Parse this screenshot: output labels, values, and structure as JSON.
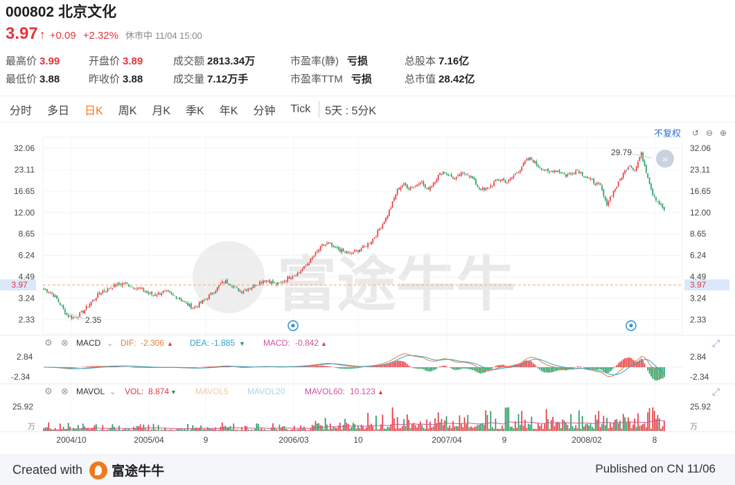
{
  "stock": {
    "code": "000802",
    "name": "北京文化",
    "price": "3.97",
    "change": "+0.09",
    "change_pct": "+2.32%",
    "status": "休市中",
    "datetime": "11/04 15:00"
  },
  "stats": {
    "high_label": "最高价",
    "high": "3.99",
    "open_label": "开盘价",
    "open": "3.89",
    "turnover_label": "成交额",
    "turnover": "2813.34万",
    "pe_static_label": "市盈率(静)",
    "pe_static": "亏损",
    "total_shares_label": "总股本",
    "total_shares": "7.16亿",
    "low_label": "最低价",
    "low": "3.88",
    "prev_close_label": "昨收价",
    "prev_close": "3.88",
    "volume_label": "成交量",
    "volume": "7.12万手",
    "pe_ttm_label": "市盈率TTM",
    "pe_ttm": "亏损",
    "market_cap_label": "总市值",
    "market_cap": "28.42亿"
  },
  "tabs": [
    "分时",
    "多日",
    "日K",
    "周K",
    "月K",
    "季K",
    "年K",
    "分钟",
    "Tick"
  ],
  "active_tab": "日K",
  "five_day_tab": "5天 : 5分K",
  "adjust_label": "不复权",
  "icons": [
    "undo-icon",
    "zoom-out-icon",
    "zoom-in-icon",
    "settings-icon",
    "close-icon",
    "expand-icon",
    "arrow-right-icon"
  ],
  "colors": {
    "up": "#e8333a",
    "down": "#1e9a5a",
    "accent": "#f2781e",
    "link": "#2f6fd6",
    "macd_dif": "#e37c3a",
    "macd_dea": "#2aa3c7",
    "macd": "#d24fa1",
    "mavol60": "#d24fa1"
  },
  "chart_data": {
    "type": "candlestick",
    "log_scale": true,
    "y_ticks": [
      "32.06",
      "23.11",
      "16.65",
      "12.00",
      "8.65",
      "6.24",
      "4.49",
      "3.24",
      "2.33"
    ],
    "ylim": [
      2.0,
      36.0
    ],
    "x_ticks": [
      "2004/10",
      "2005/04",
      "9",
      "2006/03",
      "10",
      "2007/04",
      "9",
      "2008/02",
      "8"
    ],
    "current_price": "3.97",
    "max_label": "29.79",
    "min_label": "2.35",
    "watermark": "富途牛牛",
    "close_series": [
      3.7,
      3.6,
      3.3,
      2.9,
      2.5,
      2.4,
      2.5,
      2.7,
      3.0,
      3.3,
      3.6,
      3.7,
      3.9,
      4.0,
      4.1,
      3.9,
      3.8,
      3.7,
      3.5,
      3.4,
      3.5,
      3.6,
      3.4,
      3.3,
      3.1,
      2.9,
      2.8,
      3.0,
      3.2,
      3.5,
      3.8,
      4.2,
      4.1,
      3.8,
      3.6,
      3.7,
      3.9,
      4.1,
      4.3,
      4.2,
      4.0,
      4.1,
      4.4,
      4.6,
      4.8,
      5.2,
      5.8,
      6.5,
      7.2,
      7.5,
      7.0,
      6.8,
      6.5,
      6.4,
      6.7,
      7.0,
      7.5,
      8.2,
      9.5,
      11.0,
      13.5,
      17.0,
      18.5,
      17.5,
      18.0,
      19.5,
      17.0,
      18.5,
      21.0,
      22.5,
      21.0,
      20.0,
      21.5,
      22.0,
      20.0,
      17.5,
      16.8,
      18.0,
      19.5,
      20.0,
      19.0,
      21.0,
      23.0,
      26.0,
      27.5,
      25.0,
      23.5,
      22.0,
      23.0,
      22.5,
      21.0,
      22.0,
      23.0,
      21.5,
      20.0,
      19.0,
      18.0,
      13.5,
      16.0,
      18.5,
      22.0,
      25.0,
      23.0,
      29.79,
      22.0,
      16.0,
      14.0,
      12.5
    ],
    "macd": {
      "label": "MACD",
      "dif_label": "DIF:",
      "dif": "-2.306",
      "dea_label": "DEA:",
      "dea": "-1.885",
      "macd_label": "MACD:",
      "macd": "-0.842",
      "y_ticks": [
        "2.84",
        "-2.34"
      ]
    },
    "mavol": {
      "label": "MAVOL",
      "vol_label": "VOL:",
      "vol": "8.874",
      "mavol5_label": "MAVOL5",
      "mavol20_label": "MAVOL20",
      "mavol60_label": "MAVOL60:",
      "mavol60": "10.123",
      "y_ticks": [
        "25.92",
        "万"
      ]
    }
  },
  "footer": {
    "created_with": "Created with",
    "brand": "富途牛牛",
    "published": "Published on CN 11/06"
  }
}
